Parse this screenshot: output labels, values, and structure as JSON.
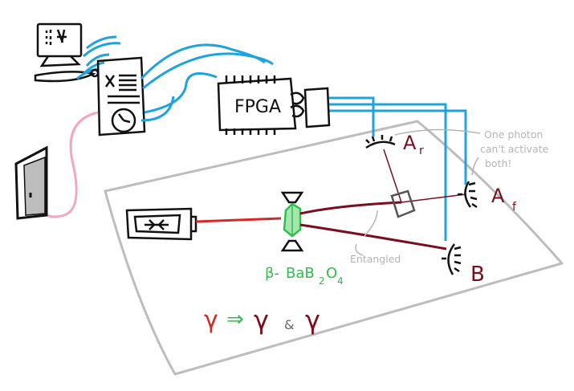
{
  "labels": {
    "fpga": "FPGA",
    "detector_ar": "A",
    "detector_ar_sub": "r",
    "detector_af": "A",
    "detector_af_sub": "f",
    "detector_b": "B",
    "crystal_beta": "β-",
    "crystal_ba": "BaB",
    "crystal_sub2": "2",
    "crystal_o": "O",
    "crystal_sub4": "4",
    "entangled": "Entangled",
    "note_line1": "One photon",
    "note_line2": "can't activate",
    "note_line3": "both!",
    "eq_gamma_in": "γ",
    "eq_arrow": "⇒",
    "eq_gamma_out1": "γ",
    "eq_and": "&",
    "eq_gamma_out2": "γ"
  },
  "colors": {
    "ink": "#111111",
    "cable": "#1fa3dc",
    "laser": "#d62828",
    "photon": "#7a0e1e",
    "crystal": "#2fbf4a",
    "pink": "#f4a6c0",
    "frame": "#bdbdbd",
    "annotation": "#b5b5b5"
  }
}
